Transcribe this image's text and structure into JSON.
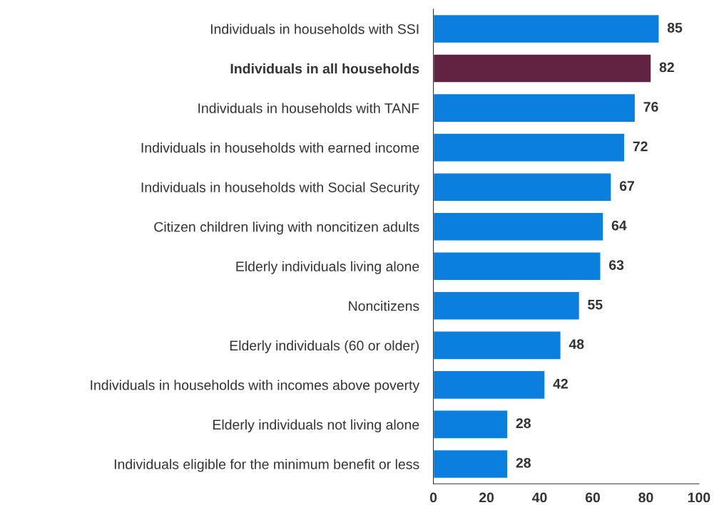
{
  "chart_data": {
    "type": "bar",
    "orientation": "horizontal",
    "categories": [
      "Individuals in households with SSI",
      "Individuals in all households",
      "Individuals in households with TANF",
      "Individuals in households with earned income",
      "Individuals in households with Social Security",
      "Citizen children living with noncitizen adults",
      "Elderly individuals living alone",
      "Noncitizens",
      "Elderly individuals (60 or older)",
      "Individuals in households with incomes above poverty",
      "Elderly individuals not living alone",
      "Individuals eligible for the minimum benefit or less"
    ],
    "values": [
      85,
      82,
      76,
      72,
      67,
      64,
      63,
      55,
      48,
      42,
      28,
      28
    ],
    "colors": [
      "#0a7fde",
      "#622242",
      "#0a7fde",
      "#0a7fde",
      "#0a7fde",
      "#0a7fde",
      "#0a7fde",
      "#0a7fde",
      "#0a7fde",
      "#0a7fde",
      "#0a7fde",
      "#0a7fde"
    ],
    "xlim": [
      0,
      100
    ],
    "xticks": [
      0,
      20,
      40,
      60,
      80,
      100
    ],
    "data_labels": true,
    "grid": false
  }
}
